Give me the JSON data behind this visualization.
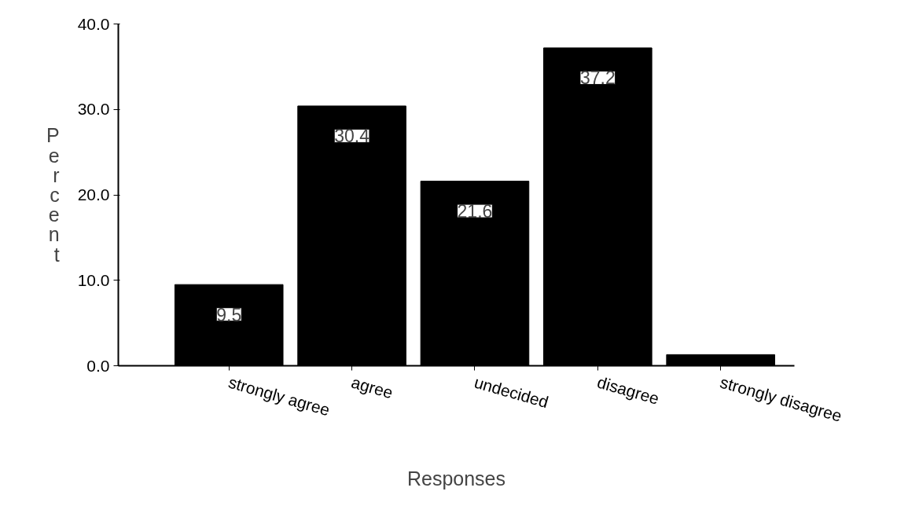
{
  "chart_data": {
    "type": "bar",
    "xlabel": "Responses",
    "ylabel": "Percent",
    "categories": [
      "strongly agree",
      "agree",
      "undecided",
      "disagree",
      "strongly disagree"
    ],
    "values": [
      9.5,
      30.4,
      21.6,
      37.2,
      1.3
    ],
    "color": "#000000",
    "value_labels": [
      "9.5",
      "30.4",
      "21.6",
      "37.2",
      null
    ],
    "ylim": [
      0,
      40
    ],
    "yticks": [
      {
        "value": 0,
        "label": "0.0"
      },
      {
        "value": 10,
        "label": "10.0"
      },
      {
        "value": 20,
        "label": "20.0"
      },
      {
        "value": 30,
        "label": "30.0"
      },
      {
        "value": 40,
        "label": "40.0"
      }
    ],
    "grid": false
  }
}
